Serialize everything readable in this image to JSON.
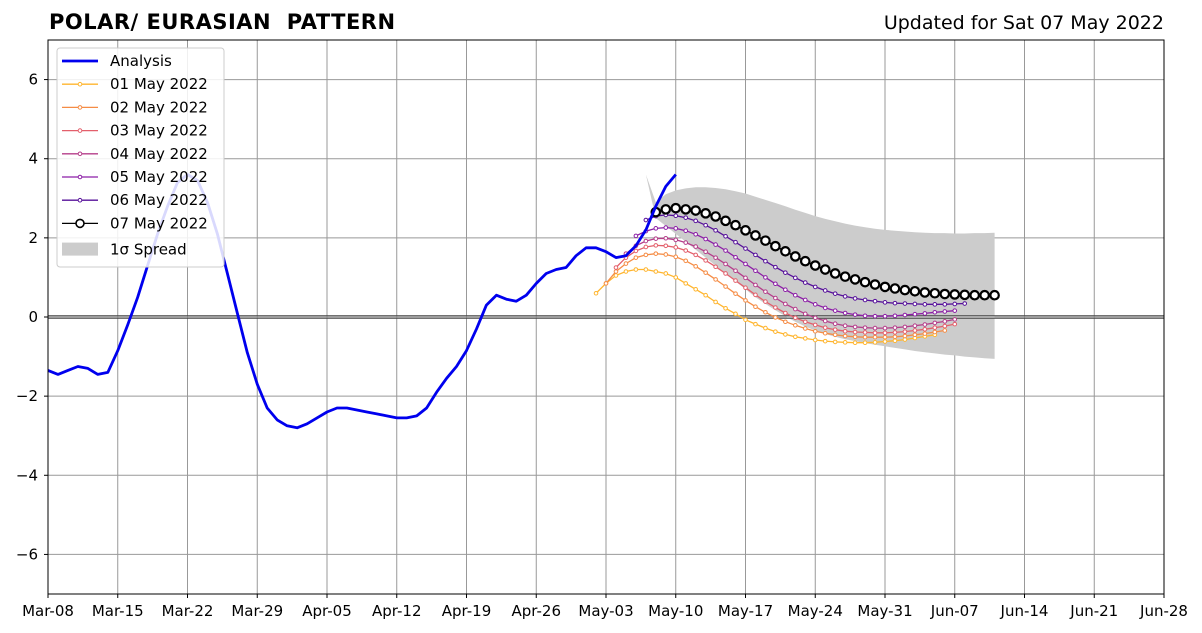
{
  "header": {
    "title": "POLAR/ EURASIAN  PATTERN",
    "updated": "Updated for Sat 07 May 2022"
  },
  "chart_data": {
    "type": "line",
    "title": "POLAR/ EURASIAN  PATTERN",
    "subtitle": "Updated for Sat 07 May 2022",
    "xlabel": "",
    "ylabel": "",
    "x_ticks": [
      "Mar-08",
      "Mar-15",
      "Mar-22",
      "Mar-29",
      "Apr-05",
      "Apr-12",
      "Apr-19",
      "Apr-26",
      "May-03",
      "May-10",
      "May-17",
      "May-24",
      "May-31",
      "Jun-07",
      "Jun-14",
      "Jun-21",
      "Jun-28"
    ],
    "xlim": [
      "2022-03-08",
      "2022-06-28"
    ],
    "y_ticks": [
      "6",
      "4",
      "2",
      "0",
      "−2",
      "−4",
      "−6"
    ],
    "ylim": [
      -7,
      7
    ],
    "grid": true,
    "legend_position": "top-left",
    "analysis": {
      "name": "Analysis",
      "color": "#0000ee",
      "x_start": "2022-03-08",
      "values": [
        -1.35,
        -1.45,
        -1.35,
        -1.25,
        -1.3,
        -1.45,
        -1.4,
        -0.85,
        -0.2,
        0.5,
        1.3,
        2.1,
        2.8,
        3.4,
        3.6,
        3.45,
        2.9,
        2.1,
        1.1,
        0.1,
        -0.9,
        -1.7,
        -2.3,
        -2.6,
        -2.75,
        -2.8,
        -2.7,
        -2.55,
        -2.4,
        -2.3,
        -2.3,
        -2.35,
        -2.4,
        -2.45,
        -2.5,
        -2.55,
        -2.55,
        -2.5,
        -2.3,
        -1.9,
        -1.55,
        -1.25,
        -0.85,
        -0.3,
        0.3,
        0.55,
        0.45,
        0.4,
        0.55,
        0.85,
        1.1,
        1.2,
        1.25,
        1.55,
        1.75,
        1.75,
        1.65,
        1.5,
        1.55,
        1.8,
        2.2,
        2.8,
        3.3,
        3.6
      ]
    },
    "forecasts": [
      {
        "name": "01 May 2022",
        "color": "#ffb52e",
        "x_start": "2022-05-02",
        "values": [
          0.6,
          0.85,
          1.05,
          1.15,
          1.2,
          1.2,
          1.15,
          1.1,
          1.0,
          0.85,
          0.7,
          0.55,
          0.38,
          0.22,
          0.08,
          -0.07,
          -0.18,
          -0.28,
          -0.37,
          -0.44,
          -0.5,
          -0.54,
          -0.58,
          -0.61,
          -0.63,
          -0.64,
          -0.65,
          -0.65,
          -0.64,
          -0.62,
          -0.6,
          -0.57,
          -0.53,
          -0.49,
          -0.45
        ]
      },
      {
        "name": "02 May 2022",
        "color": "#f58c45",
        "x_start": "2022-05-03",
        "values": [
          0.85,
          1.15,
          1.35,
          1.5,
          1.57,
          1.6,
          1.58,
          1.52,
          1.42,
          1.28,
          1.12,
          0.95,
          0.77,
          0.59,
          0.42,
          0.26,
          0.12,
          -0.01,
          -0.12,
          -0.21,
          -0.29,
          -0.36,
          -0.41,
          -0.45,
          -0.48,
          -0.5,
          -0.51,
          -0.51,
          -0.51,
          -0.5,
          -0.48,
          -0.45,
          -0.42,
          -0.38,
          -0.34
        ]
      },
      {
        "name": "03 May 2022",
        "color": "#e35f6b",
        "x_start": "2022-05-04",
        "values": [
          1.25,
          1.5,
          1.67,
          1.77,
          1.81,
          1.8,
          1.76,
          1.68,
          1.57,
          1.43,
          1.27,
          1.1,
          0.92,
          0.74,
          0.56,
          0.39,
          0.24,
          0.1,
          -0.02,
          -0.12,
          -0.2,
          -0.27,
          -0.32,
          -0.36,
          -0.38,
          -0.39,
          -0.4,
          -0.4,
          -0.39,
          -0.37,
          -0.34,
          -0.31,
          -0.27,
          -0.23,
          -0.18
        ]
      },
      {
        "name": "04 May 2022",
        "color": "#b53d8a",
        "x_start": "2022-05-05",
        "values": [
          1.6,
          1.8,
          1.92,
          1.98,
          1.99,
          1.95,
          1.88,
          1.78,
          1.65,
          1.5,
          1.34,
          1.17,
          0.99,
          0.81,
          0.64,
          0.48,
          0.33,
          0.2,
          0.08,
          -0.02,
          -0.1,
          -0.17,
          -0.22,
          -0.25,
          -0.27,
          -0.28,
          -0.28,
          -0.27,
          -0.25,
          -0.22,
          -0.19,
          -0.15,
          -0.11,
          -0.06
        ]
      },
      {
        "name": "05 May 2022",
        "color": "#8c1ea6",
        "x_start": "2022-05-06",
        "values": [
          2.05,
          2.17,
          2.24,
          2.26,
          2.24,
          2.18,
          2.09,
          1.97,
          1.83,
          1.68,
          1.51,
          1.34,
          1.17,
          1.0,
          0.84,
          0.69,
          0.55,
          0.43,
          0.32,
          0.23,
          0.16,
          0.1,
          0.06,
          0.03,
          0.02,
          0.02,
          0.03,
          0.05,
          0.07,
          0.09,
          0.12,
          0.14,
          0.16
        ]
      },
      {
        "name": "06 May 2022",
        "color": "#56109a",
        "x_start": "2022-05-07",
        "values": [
          2.45,
          2.55,
          2.58,
          2.56,
          2.51,
          2.43,
          2.32,
          2.19,
          2.04,
          1.89,
          1.73,
          1.57,
          1.41,
          1.26,
          1.12,
          0.99,
          0.87,
          0.76,
          0.67,
          0.59,
          0.52,
          0.47,
          0.43,
          0.4,
          0.37,
          0.35,
          0.34,
          0.33,
          0.32,
          0.32,
          0.32,
          0.33,
          0.34
        ]
      },
      {
        "name": "07 May 2022",
        "color": "#000000",
        "x_start": "2022-05-08",
        "values": [
          2.65,
          2.72,
          2.75,
          2.72,
          2.69,
          2.62,
          2.54,
          2.43,
          2.32,
          2.19,
          2.06,
          1.93,
          1.79,
          1.66,
          1.53,
          1.41,
          1.3,
          1.2,
          1.1,
          1.02,
          0.95,
          0.88,
          0.82,
          0.76,
          0.72,
          0.68,
          0.65,
          0.62,
          0.6,
          0.58,
          0.57,
          0.56,
          0.55,
          0.55,
          0.55
        ]
      }
    ],
    "spread": {
      "name": "1σ Spread",
      "color": "#cccccc",
      "x_start": "2022-05-07",
      "x_end": "2022-06-11",
      "upper": [
        3.6,
        2.9,
        3.1,
        3.2,
        3.25,
        3.28,
        3.28,
        3.26,
        3.23,
        3.18,
        3.12,
        3.04,
        2.96,
        2.88,
        2.8,
        2.71,
        2.63,
        2.55,
        2.48,
        2.42,
        2.36,
        2.31,
        2.27,
        2.23,
        2.2,
        2.18,
        2.16,
        2.14,
        2.13,
        2.12,
        2.12,
        2.11,
        2.11,
        2.12,
        2.12,
        2.13
      ],
      "lower": [
        3.6,
        2.5,
        2.3,
        2.1,
        1.9,
        1.7,
        1.5,
        1.3,
        1.1,
        0.9,
        0.7,
        0.5,
        0.33,
        0.17,
        0.02,
        -0.12,
        -0.24,
        -0.34,
        -0.43,
        -0.5,
        -0.56,
        -0.61,
        -0.66,
        -0.7,
        -0.74,
        -0.78,
        -0.82,
        -0.86,
        -0.89,
        -0.92,
        -0.95,
        -0.97,
        -1.0,
        -1.02,
        -1.04,
        -1.06
      ]
    }
  }
}
